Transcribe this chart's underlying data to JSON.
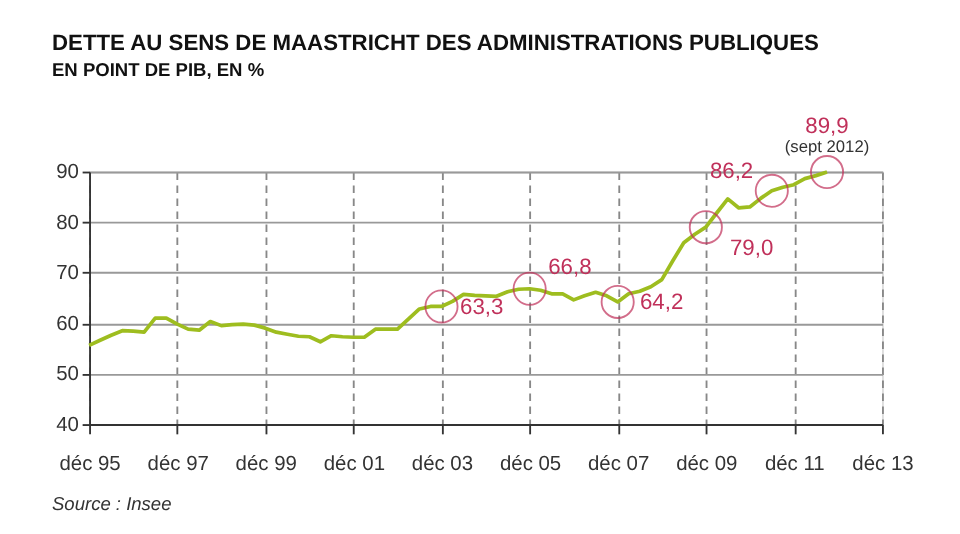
{
  "chart_data": {
    "type": "line",
    "title": "DETTE AU SENS DE MAASTRICHT DES ADMINISTRATIONS PUBLIQUES",
    "subtitle": "EN POINT DE PIB, EN %",
    "x": [
      "1995-12",
      "1996-03",
      "1996-06",
      "1996-09",
      "1996-12",
      "1997-03",
      "1997-06",
      "1997-09",
      "1997-12",
      "1998-03",
      "1998-06",
      "1998-09",
      "1998-12",
      "1999-03",
      "1999-06",
      "1999-09",
      "1999-12",
      "2000-03",
      "2000-06",
      "2000-09",
      "2000-12",
      "2001-03",
      "2001-06",
      "2001-09",
      "2001-12",
      "2002-03",
      "2002-06",
      "2002-09",
      "2002-12",
      "2003-03",
      "2003-06",
      "2003-09",
      "2003-12",
      "2004-03",
      "2004-06",
      "2004-09",
      "2004-12",
      "2005-03",
      "2005-06",
      "2005-09",
      "2005-12",
      "2006-03",
      "2006-06",
      "2006-09",
      "2006-12",
      "2007-03",
      "2007-06",
      "2007-09",
      "2007-12",
      "2008-03",
      "2008-06",
      "2008-09",
      "2008-12",
      "2009-03",
      "2009-06",
      "2009-09",
      "2009-12",
      "2010-03",
      "2010-06",
      "2010-09",
      "2010-12",
      "2011-03",
      "2011-06",
      "2011-09",
      "2011-12",
      "2012-03",
      "2012-06",
      "2012-09"
    ],
    "series": [
      {
        "color": "#9ebd1f",
        "values": [
          55.6,
          56.6,
          57.6,
          58.5,
          58.4,
          58.2,
          61.0,
          61.0,
          59.8,
          58.8,
          58.6,
          60.3,
          59.5,
          59.7,
          59.8,
          59.6,
          59.0,
          58.2,
          57.8,
          57.4,
          57.3,
          56.3,
          57.5,
          57.3,
          57.2,
          57.2,
          58.8,
          58.8,
          58.8,
          60.8,
          62.8,
          63.3,
          63.3,
          64.3,
          65.7,
          65.5,
          65.4,
          65.3,
          66.2,
          66.7,
          66.8,
          66.5,
          65.8,
          65.8,
          64.6,
          65.4,
          66.1,
          65.4,
          64.2,
          65.8,
          66.3,
          67.2,
          68.6,
          72.3,
          75.9,
          77.6,
          79.0,
          81.8,
          84.6,
          82.8,
          83.0,
          84.7,
          86.2,
          86.9,
          87.4,
          88.6,
          89.2,
          89.9
        ]
      }
    ],
    "xlim": [
      "1995-12",
      "2013-12"
    ],
    "xticks": [
      {
        "value": "1995-12",
        "label": "déc 95"
      },
      {
        "value": "1997-12",
        "label": "déc 97"
      },
      {
        "value": "1999-12",
        "label": "déc 99"
      },
      {
        "value": "2001-12",
        "label": "déc 01"
      },
      {
        "value": "2003-12",
        "label": "déc 03"
      },
      {
        "value": "2005-12",
        "label": "déc 05"
      },
      {
        "value": "2007-12",
        "label": "déc 07"
      },
      {
        "value": "2009-12",
        "label": "déc 09"
      },
      {
        "value": "2011-12",
        "label": "déc 11"
      },
      {
        "value": "2013-12",
        "label": "déc 13"
      }
    ],
    "ylim": [
      40,
      90
    ],
    "yticks": [
      40,
      50,
      60,
      70,
      80,
      90
    ],
    "grid": true,
    "marker": "none",
    "line_style": "solid",
    "annotations": [
      {
        "text": "63,3",
        "x": "2003-12",
        "y": 63.3
      },
      {
        "text": "66,8",
        "x": "2005-12",
        "y": 66.8
      },
      {
        "text": "64,2",
        "x": "2007-12",
        "y": 64.2
      },
      {
        "text": "79,0",
        "x": "2009-12",
        "y": 79.0
      },
      {
        "text": "86,2",
        "x": "2011-06",
        "y": 86.2
      },
      {
        "text": "89,9",
        "x": "2012-09",
        "y": 89.9
      },
      {
        "text": "(sept 2012)",
        "x": "2012-09",
        "y": 89.9
      },
      "Source : Insee"
    ]
  }
}
